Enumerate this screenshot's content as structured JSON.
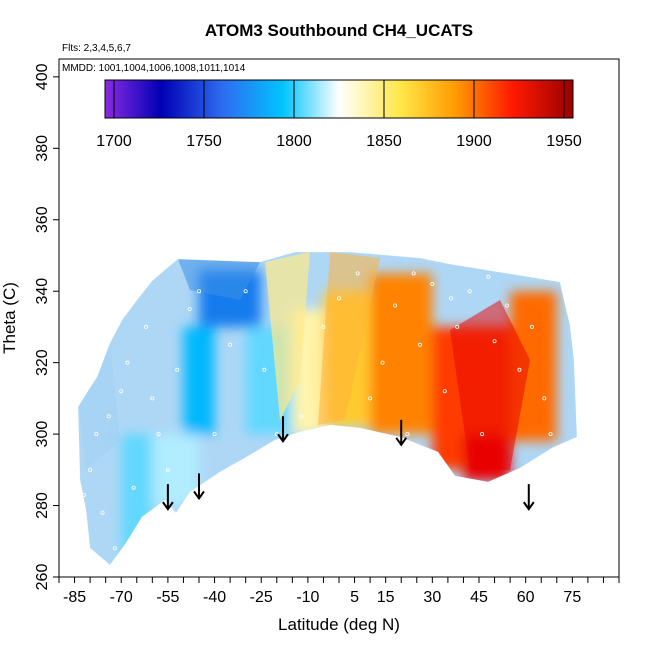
{
  "chart_data": {
    "type": "heatmap",
    "title": "ATOM3 Southbound CH4_UCATS",
    "annotations": {
      "flights": "Flts: 2,3,4,5,6,7",
      "dates": "MMDD: 1001,1004,1006,1008,1011,1014"
    },
    "xlabel": "Latitude (deg N)",
    "ylabel": "Theta (C)",
    "xlim": [
      -90,
      90
    ],
    "ylim": [
      260,
      405
    ],
    "x_ticks_labeled": [
      -85,
      -70,
      -55,
      -40,
      -25,
      -10,
      5,
      15,
      30,
      45,
      60,
      75
    ],
    "y_ticks": [
      260,
      280,
      300,
      320,
      340,
      360,
      380,
      400
    ],
    "colorbar": {
      "range": [
        1695,
        1955
      ],
      "ticks": [
        1700,
        1750,
        1800,
        1850,
        1900,
        1950
      ],
      "placement": "top",
      "colors": [
        "#7a1ee6",
        "#0000aa",
        "#1f5ee6",
        "#00c0ff",
        "#ffffff",
        "#ffe84a",
        "#ff9a00",
        "#ff0000",
        "#a00000"
      ]
    },
    "grid": false,
    "arrows_lat": [
      -55,
      -45,
      -18,
      20,
      61
    ],
    "regions": [
      {
        "lat": [
          -70,
          -60
        ],
        "theta": [
          265,
          300
        ],
        "value": 1805
      },
      {
        "lat": [
          -60,
          -45
        ],
        "theta": [
          280,
          300
        ],
        "value": 1815
      },
      {
        "lat": [
          -50,
          -40
        ],
        "theta": [
          300,
          330
        ],
        "value": 1790
      },
      {
        "lat": [
          -45,
          -25
        ],
        "theta": [
          330,
          346
        ],
        "value": 1770
      },
      {
        "lat": [
          -30,
          -15
        ],
        "theta": [
          300,
          330
        ],
        "value": 1805
      },
      {
        "lat": [
          -15,
          -5
        ],
        "theta": [
          300,
          335
        ],
        "value": 1840
      },
      {
        "lat": [
          -5,
          10
        ],
        "theta": [
          302,
          340
        ],
        "value": 1870
      },
      {
        "lat": [
          10,
          30
        ],
        "theta": [
          300,
          345
        ],
        "value": 1895
      },
      {
        "lat": [
          30,
          55
        ],
        "theta": [
          290,
          330
        ],
        "value": 1910
      },
      {
        "lat": [
          40,
          55
        ],
        "theta": [
          287,
          300
        ],
        "value": 1930
      },
      {
        "lat": [
          55,
          70
        ],
        "theta": [
          298,
          340
        ],
        "value": 1900
      }
    ]
  }
}
